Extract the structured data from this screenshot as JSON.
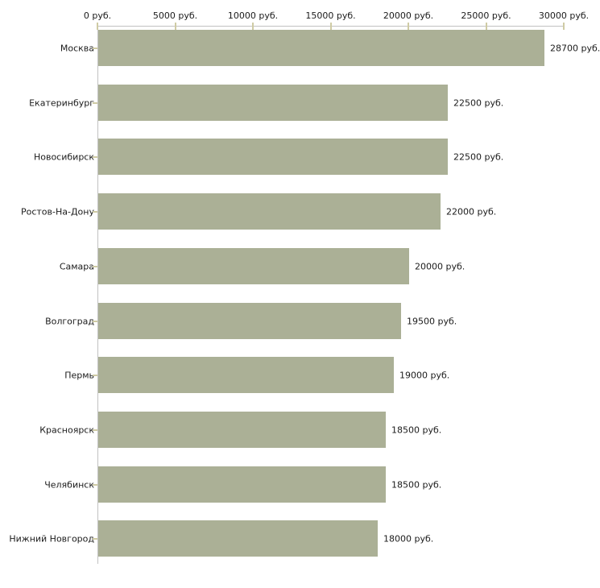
{
  "chart_data": {
    "type": "bar",
    "orientation": "horizontal",
    "title": "",
    "xlabel": "",
    "ylabel": "",
    "grid": false,
    "legend": false,
    "categories": [
      "Москва",
      "Екатеринбург",
      "Новосибирск",
      "Ростов-На-Дону",
      "Самара",
      "Волгоград",
      "Пермь",
      "Красноярск",
      "Челябинск",
      "Нижний Новгород"
    ],
    "values": [
      28700,
      22500,
      22500,
      22000,
      20000,
      19500,
      19000,
      18500,
      18500,
      18000
    ],
    "bar_labels": [
      "28700 руб.",
      "22500 руб.",
      "22500 руб.",
      "22000 руб.",
      "20000 руб.",
      "19500 руб.",
      "19000 руб.",
      "18500 руб.",
      "18500 руб.",
      "18000 руб."
    ],
    "x_axis": {
      "position": "top",
      "range": [
        0,
        30000
      ],
      "ticks": [
        0,
        5000,
        10000,
        15000,
        20000,
        25000,
        30000
      ],
      "tick_labels": [
        "0 руб.",
        "5000 руб.",
        "10000 руб.",
        "15000 руб.",
        "20000 руб.",
        "25000 руб.",
        "30000 руб."
      ]
    },
    "colors": {
      "bar": "#abb096",
      "axis": "#c2c2c2",
      "tick": "#cfcba4",
      "text": "#1b1b1b"
    }
  }
}
